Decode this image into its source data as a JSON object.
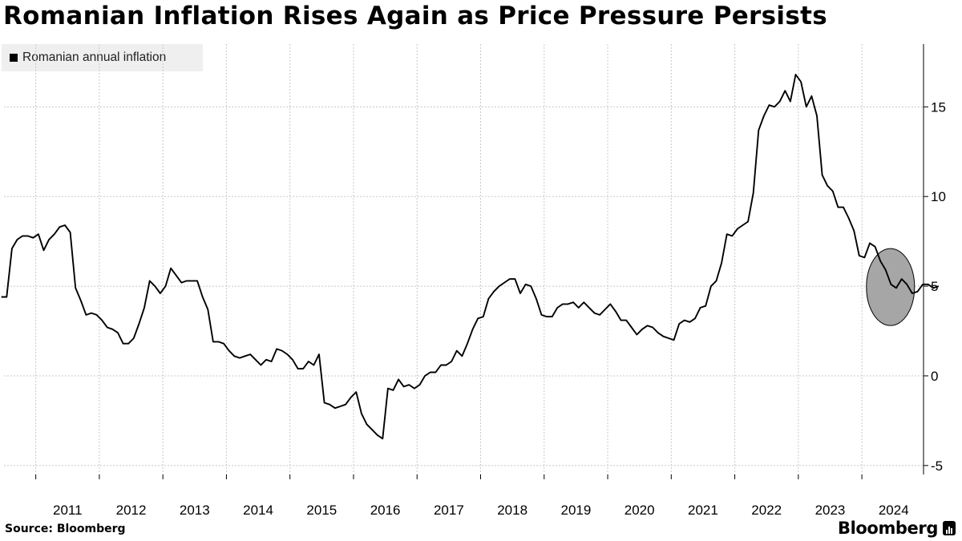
{
  "title": "Romanian Inflation Rises Again as Price Pressure Persists",
  "source": "Source: Bloomberg",
  "brand": "Bloomberg",
  "legend": {
    "label": "Romanian annual inflation"
  },
  "colors": {
    "line": "#000000",
    "highlight_fill": "#a6a6a6",
    "grid": "#c8c8c8",
    "legend_bg": "#efefef"
  },
  "chart_data": {
    "type": "line",
    "title": "Romanian Inflation Rises Again as Price Pressure Persists",
    "xlabel": "",
    "ylabel": "",
    "ylim": [
      -5.5,
      18.5
    ],
    "y_ticks": [
      15,
      10,
      5,
      0,
      -5
    ],
    "y_tick_labels": [
      "15",
      "10",
      "5",
      "0",
      "-5"
    ],
    "x_tick_labels": [
      "2011",
      "2012",
      "2013",
      "2014",
      "2015",
      "2016",
      "2017",
      "2018",
      "2019",
      "2020",
      "2021",
      "2022",
      "2023",
      "2024"
    ],
    "x_range": [
      2010.5,
      2024.97
    ],
    "grid": true,
    "legend_position": "top-left",
    "highlight": {
      "type": "ellipse",
      "center_date": 2024.45,
      "center_value": 4.95,
      "note": "circled recent readings"
    },
    "series": [
      {
        "name": "Romanian annual inflation",
        "start": "2010-06",
        "frequency": "monthly",
        "values": [
          4.4,
          4.4,
          7.1,
          7.6,
          7.8,
          7.8,
          7.7,
          7.9,
          7.0,
          7.6,
          7.9,
          8.3,
          8.4,
          8.0,
          4.9,
          4.2,
          3.4,
          3.5,
          3.4,
          3.1,
          2.7,
          2.6,
          2.4,
          1.8,
          1.8,
          2.1,
          2.9,
          3.8,
          5.3,
          5.0,
          4.6,
          5.0,
          6.0,
          5.6,
          5.2,
          5.3,
          5.3,
          5.3,
          4.4,
          3.7,
          1.9,
          1.9,
          1.8,
          1.4,
          1.1,
          1.0,
          1.1,
          1.2,
          0.9,
          0.6,
          0.9,
          0.8,
          1.5,
          1.4,
          1.2,
          0.9,
          0.4,
          0.4,
          0.8,
          0.6,
          1.2,
          -1.5,
          -1.6,
          -1.8,
          -1.7,
          -1.6,
          -1.2,
          -0.9,
          -2.1,
          -2.7,
          -3.0,
          -3.3,
          -3.5,
          -0.7,
          -0.8,
          -0.2,
          -0.6,
          -0.5,
          -0.7,
          -0.5,
          0.0,
          0.2,
          0.2,
          0.6,
          0.6,
          0.8,
          1.4,
          1.1,
          1.8,
          2.6,
          3.2,
          3.3,
          4.3,
          4.7,
          5.0,
          5.2,
          5.4,
          5.4,
          4.6,
          5.1,
          5.0,
          4.3,
          3.4,
          3.3,
          3.3,
          3.8,
          4.0,
          4.0,
          4.1,
          3.8,
          4.1,
          3.8,
          3.5,
          3.4,
          3.7,
          4.0,
          3.6,
          3.1,
          3.1,
          2.7,
          2.3,
          2.6,
          2.8,
          2.7,
          2.4,
          2.2,
          2.1,
          2.0,
          2.9,
          3.1,
          3.0,
          3.2,
          3.8,
          3.9,
          5.0,
          5.3,
          6.3,
          7.9,
          7.8,
          8.2,
          8.4,
          8.6,
          10.2,
          13.7,
          14.5,
          15.1,
          15.0,
          15.3,
          15.9,
          15.3,
          16.8,
          16.4,
          15.0,
          15.6,
          14.5,
          11.2,
          10.6,
          10.3,
          9.4,
          9.4,
          8.8,
          8.1,
          6.7,
          6.6,
          7.4,
          7.2,
          6.4,
          5.9,
          5.1,
          4.9,
          5.4,
          5.1,
          4.6,
          4.7,
          5.1,
          5.1,
          4.9,
          5.0
        ]
      }
    ]
  }
}
